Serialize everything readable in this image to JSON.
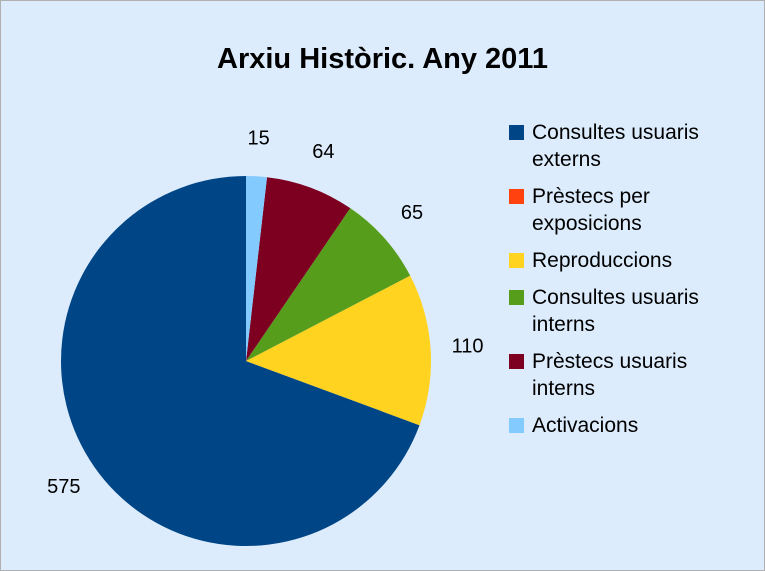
{
  "chart_data": {
    "type": "pie",
    "title": "Arxiu Històric.  Any 2011",
    "categories": [
      "Consultes usuaris externs",
      "Prèstecs per exposicions",
      "Reproduccions",
      "Consultes usuaris interns",
      "Prèstecs usuaris interns",
      "Activacions"
    ],
    "values": [
      575,
      0,
      110,
      65,
      64,
      15
    ],
    "colors": [
      "#004586",
      "#ff420e",
      "#ffd320",
      "#579d1c",
      "#7e0021",
      "#83caff"
    ],
    "legend": "right"
  }
}
